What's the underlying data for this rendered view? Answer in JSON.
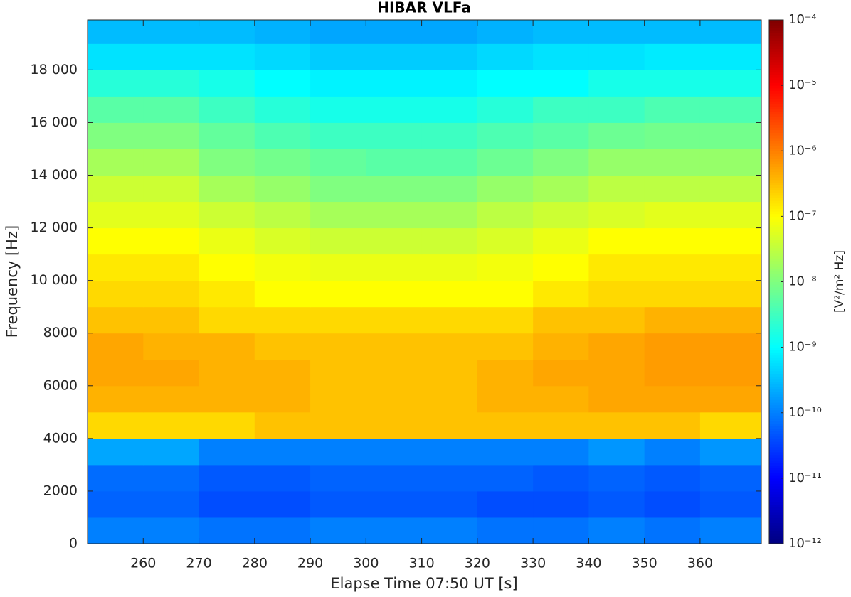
{
  "chart_data": {
    "type": "spectrogram",
    "title": "HIBAR VLFa",
    "x_label": "Elapse Time 07:50 UT [s]",
    "y_label": "Frequency [Hz]",
    "colorbar_label": "[V²/m² Hz]",
    "colormap": "jet",
    "colorbar_log": true,
    "xlim": [
      250,
      371
    ],
    "ylim": [
      0,
      19900
    ],
    "clim": [
      1e-12,
      0.0001
    ],
    "xticks": [
      260,
      270,
      280,
      290,
      300,
      310,
      320,
      330,
      340,
      350,
      360
    ],
    "yticks": [
      0,
      2000,
      4000,
      6000,
      8000,
      {
        "value": 10000,
        "label": "10 000"
      },
      {
        "value": 12000,
        "label": "12 000"
      },
      {
        "value": 14000,
        "label": "14 000"
      },
      {
        "value": 16000,
        "label": "16 000"
      },
      {
        "value": 18000,
        "label": "18 000"
      }
    ],
    "colorbar_ticks": [
      {
        "value": 1e-12,
        "label": "10⁻¹²"
      },
      {
        "value": 1e-11,
        "label": "10⁻¹¹"
      },
      {
        "value": 1e-10,
        "label": "10⁻¹⁰"
      },
      {
        "value": 1e-09,
        "label": "10⁻⁹"
      },
      {
        "value": 1e-08,
        "label": "10⁻⁸"
      },
      {
        "value": 1e-07,
        "label": "10⁻⁷"
      },
      {
        "value": 1e-06,
        "label": "10⁻⁶"
      },
      {
        "value": 1e-05,
        "label": "10⁻⁵"
      },
      {
        "value": 0.0001,
        "label": "10⁻⁴"
      }
    ],
    "xbins": [
      250,
      260,
      270,
      280,
      290,
      300,
      310,
      320,
      330,
      340,
      350,
      360,
      371
    ],
    "ybins": [
      0,
      1000,
      2000,
      3000,
      4000,
      5000,
      6000,
      7000,
      8000,
      9000,
      10000,
      11000,
      12000,
      13000,
      14000,
      15000,
      16000,
      17000,
      18000,
      19000,
      19900
    ],
    "values": [
      [
        1e-10,
        1e-10,
        8e-11,
        8e-11,
        1e-10,
        1e-10,
        1e-10,
        8e-11,
        8e-11,
        1e-10,
        8e-11,
        1e-10
      ],
      [
        6e-11,
        6e-11,
        4e-11,
        4e-11,
        5e-11,
        5e-11,
        5e-11,
        4e-11,
        4e-11,
        5e-11,
        4e-11,
        5e-11
      ],
      [
        7e-11,
        7e-11,
        5e-11,
        5e-11,
        6e-11,
        6e-11,
        6e-11,
        6e-11,
        5e-11,
        6e-11,
        5e-11,
        6e-11
      ],
      [
        2e-10,
        2e-10,
        1e-10,
        1e-10,
        1e-10,
        1e-10,
        1e-10,
        1e-10,
        1e-10,
        1.5e-10,
        1e-10,
        1.5e-10
      ],
      [
        2e-07,
        2e-07,
        2e-07,
        3e-07,
        3e-07,
        3e-07,
        3e-07,
        3e-07,
        3e-07,
        3e-07,
        3e-07,
        2e-07
      ],
      [
        4e-07,
        4e-07,
        4e-07,
        4e-07,
        3e-07,
        3e-07,
        3e-07,
        4e-07,
        4e-07,
        5e-07,
        5e-07,
        5e-07
      ],
      [
        5e-07,
        5e-07,
        4e-07,
        4e-07,
        3e-07,
        3e-07,
        3e-07,
        4e-07,
        5e-07,
        5e-07,
        6e-07,
        6e-07
      ],
      [
        5e-07,
        4e-07,
        4e-07,
        3e-07,
        3e-07,
        3e-07,
        3e-07,
        3e-07,
        4e-07,
        5e-07,
        6e-07,
        6e-07
      ],
      [
        3e-07,
        3e-07,
        2e-07,
        2e-07,
        2e-07,
        2e-07,
        2e-07,
        2e-07,
        3e-07,
        3e-07,
        4e-07,
        4e-07
      ],
      [
        2e-07,
        2e-07,
        1.5e-07,
        1e-07,
        1e-07,
        1e-07,
        1e-07,
        1e-07,
        1.5e-07,
        2e-07,
        2e-07,
        2e-07
      ],
      [
        1.5e-07,
        1.5e-07,
        1e-07,
        8e-08,
        7e-08,
        7e-08,
        7e-08,
        8e-08,
        1e-07,
        1.5e-07,
        1.5e-07,
        1.5e-07
      ],
      [
        1e-07,
        1e-07,
        7e-08,
        5e-08,
        4e-08,
        4e-08,
        4e-08,
        5e-08,
        7e-08,
        1e-07,
        1e-07,
        1e-07
      ],
      [
        6e-08,
        6e-08,
        4e-08,
        3e-08,
        2e-08,
        2e-08,
        2e-08,
        3e-08,
        4e-08,
        5e-08,
        6e-08,
        6e-08
      ],
      [
        4e-08,
        4e-08,
        2e-08,
        1.5e-08,
        1e-08,
        1e-08,
        1e-08,
        1.5e-08,
        2e-08,
        3e-08,
        3e-08,
        3e-08
      ],
      [
        2e-08,
        2e-08,
        1e-08,
        8e-09,
        6e-09,
        5e-09,
        5e-09,
        7e-09,
        1e-08,
        1.5e-08,
        1.5e-08,
        1.5e-08
      ],
      [
        1e-08,
        1e-08,
        6e-09,
        4e-09,
        3e-09,
        3e-09,
        3e-09,
        4e-09,
        5e-09,
        7e-09,
        8e-09,
        8e-09
      ],
      [
        5e-09,
        5e-09,
        3e-09,
        2e-09,
        1.5e-09,
        1.5e-09,
        1.5e-09,
        2e-09,
        3e-09,
        3e-09,
        4e-09,
        4e-09
      ],
      [
        2e-09,
        2e-09,
        1.5e-09,
        1e-09,
        8e-10,
        8e-10,
        8e-10,
        1e-09,
        1e-09,
        1.5e-09,
        1.5e-09,
        1.5e-09
      ],
      [
        6e-10,
        6e-10,
        6e-10,
        5e-10,
        4e-10,
        4e-10,
        4e-10,
        5e-10,
        6e-10,
        6e-10,
        7e-10,
        7e-10
      ],
      [
        3e-10,
        3e-10,
        3e-10,
        2.5e-10,
        2e-10,
        2e-10,
        2e-10,
        2.5e-10,
        3e-10,
        3e-10,
        3e-10,
        3e-10
      ]
    ]
  }
}
